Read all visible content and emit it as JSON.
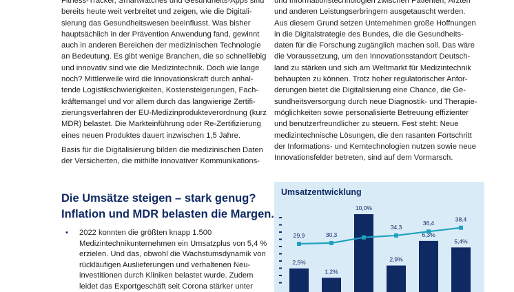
{
  "left_column": {
    "paragraph1": [
      "Fitness-Tracker, Smartwatches und Gesundheits-Apps sind",
      "bereits heute weit verbreitet und zeigen, wie die Digitali-",
      "sierung das Gesundheitswesen beeinflusst. Was bisher",
      "hauptsächlich in der Prävention Anwendung fand, gewinnt",
      "auch in anderen Bereichen der medizinischen Technologie",
      "an Bedeutung. Es gibt wenige Branchen, die so schnelllebig",
      "und innovativ sind wie die Medizintechnik. Doch wie lange",
      "noch? Mittlerweile wird die Innovationskraft durch anhal-",
      "tende Logistikschwierigkeiten, Kostensteigerungen, Fach-",
      "kräftemangel und vor allem durch das langwierige Zertifi-",
      "zierungsverfahren der EU-Medizinprodukteverordnung (kurz",
      "MDR) belastet. Die Markteinführung oder Re-Zertifizierung",
      "eines neuen Produktes dauert inzwischen 1,5 Jahre."
    ],
    "paragraph2": [
      "Basis für die Digitalisierung bilden die medizinischen Daten",
      "der Versicherten, die mithilfe innovativer Kommunikations-"
    ]
  },
  "right_column": {
    "lines": [
      "und Informationstechnologien zwischen Patienten, Ärzten",
      "und anderen Leistungserbringern ausgetauscht werden.",
      "Aus diesem Grund setzen Unternehmen große Hoffnungen",
      "in die Digitalstrategie des Bundes, die die Gesundheits-",
      "daten für die Forschung zugänglich machen soll. Das wäre",
      "die Voraussetzung, um den Innovationsstandort Deutsch-",
      "land zu stärken und sich am Weltmarkt für Medizintechnik",
      "behaupten zu können. Trotz hoher regulatorischer Anfor-",
      "derungen bietet die Digitalisierung eine Chance, die Ge-",
      "sundheitsversorgung durch neue Diagnostik- und Therapie-",
      "möglichkeiten sowie personalisierte Betreuung effizienter",
      "und benutzerfreundlicher zu steuern. Fest steht: Neue",
      "medizintechnische Lösungen, die den rasanten Fortschritt",
      "der Informations- und Kerntechnologien nutzen sowie neue",
      "Innovationsfelder betreten, sind auf dem Vormarsch."
    ]
  },
  "section": {
    "heading": "Die Umsätze steigen – stark genug?",
    "subheading": "Inflation und MDR belasten die Margen.",
    "bullet_symbol": "•",
    "bullet_lines": [
      "2022 konnten die größten knapp 1.500",
      "Medizintechnikunternehmen ein Umsatzplus von 5,4 %",
      "erzielen. Und das, obwohl die Wachstumsdynamik von",
      "rückläufigen Auslieferungen und verhaltenen Neu-",
      "investitionen durch Kliniken belastet wurde. Zudem",
      "leidet das Exportgeschäft seit Corona stärker unter"
    ]
  },
  "chart_data": {
    "type": "bar",
    "title": "Umsatzentwicklung",
    "colors": {
      "bar": "#0f2a63",
      "line": "#1fa2bf",
      "panel": "#d9ebf7",
      "text": "#0f2a63"
    },
    "series": [
      {
        "type": "line",
        "values": [
          29.9,
          30.3,
          33.3,
          34.3,
          36.4,
          38.4
        ],
        "labels": [
          "29,9",
          "30,3",
          "33,3",
          "34,3",
          "36,4",
          "38,4"
        ]
      },
      {
        "type": "bar",
        "values": [
          2.5,
          1.2,
          10.0,
          2.9,
          6.3,
          5.4
        ],
        "labels": [
          "2,5%",
          "1,2%",
          "10,0%",
          "2,9%",
          "6,3%",
          "5,4%"
        ]
      }
    ]
  }
}
